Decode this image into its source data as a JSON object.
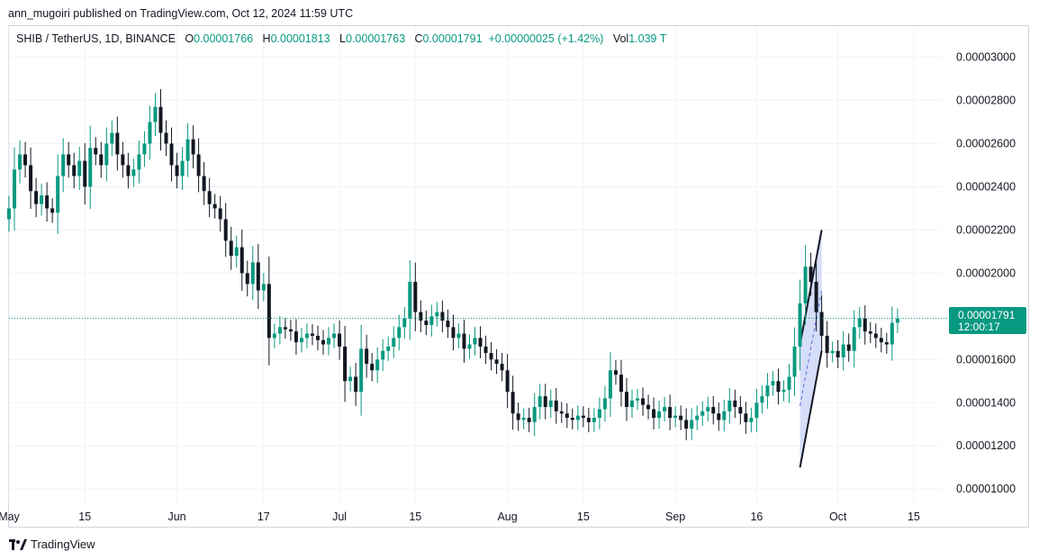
{
  "header": {
    "published_text": "ann_mugoiri published on TradingView.com, Oct 12, 2024 11:59 UTC"
  },
  "legend": {
    "symbol": "SHIB / TetherUS, 1D, BINANCE",
    "open_label": "O",
    "open": "0.00001766",
    "high_label": "H",
    "high": "0.00001813",
    "low_label": "L",
    "low": "0.00001763",
    "close_label": "C",
    "close": "0.00001791",
    "change": "+0.00000025 (+1.42%)",
    "vol_label": "Vol",
    "vol": "1.039 T"
  },
  "price_tag": {
    "price": "0.00001791",
    "countdown": "12:00:17"
  },
  "footer": {
    "brand": "TradingView"
  },
  "colors": {
    "up": "#089981",
    "down": "#131722",
    "price_line": "#089981",
    "channel_fill": "#c5cff5",
    "grid": "#f0f3fa",
    "text": "#131722"
  },
  "chart_data": {
    "type": "candlestick",
    "title": "SHIB / TetherUS, 1D, BINANCE",
    "y_ticks": [
      "0.00001000",
      "0.00001200",
      "0.00001400",
      "0.00001600",
      "0.00001800",
      "0.00002000",
      "0.00002200",
      "0.00002400",
      "0.00002600",
      "0.00002800",
      "0.00003000"
    ],
    "y_range": [
      9.3e-06,
      3.14e-05
    ],
    "x_ticks": [
      {
        "label": "May",
        "date": "2024-05-01"
      },
      {
        "label": "15",
        "date": "2024-05-15"
      },
      {
        "label": "Jun",
        "date": "2024-06-01"
      },
      {
        "label": "17",
        "date": "2024-06-17"
      },
      {
        "label": "Jul",
        "date": "2024-07-01"
      },
      {
        "label": "15",
        "date": "2024-07-15"
      },
      {
        "label": "Aug",
        "date": "2024-08-01"
      },
      {
        "label": "15",
        "date": "2024-08-15"
      },
      {
        "label": "Sep",
        "date": "2024-09-01"
      },
      {
        "label": "16",
        "date": "2024-09-16"
      },
      {
        "label": "Oct",
        "date": "2024-10-01"
      },
      {
        "label": "15",
        "date": "2024-10-15"
      }
    ],
    "x_range": [
      "2024-05-01",
      "2024-10-20"
    ],
    "last_price": 1.791e-05,
    "price_line": "dotted",
    "grid": true,
    "candle_dates": [
      "2024-05-01",
      "2024-05-02",
      "2024-05-03",
      "2024-05-04",
      "2024-05-05",
      "2024-05-06",
      "2024-05-07",
      "2024-05-08",
      "2024-05-09",
      "2024-05-10",
      "2024-05-11",
      "2024-05-12",
      "2024-05-13",
      "2024-05-14",
      "2024-05-15",
      "2024-05-16",
      "2024-05-17",
      "2024-05-18",
      "2024-05-19",
      "2024-05-20",
      "2024-05-21",
      "2024-05-22",
      "2024-05-23",
      "2024-05-24",
      "2024-05-25",
      "2024-05-26",
      "2024-05-27",
      "2024-05-28",
      "2024-05-29",
      "2024-05-30",
      "2024-05-31",
      "2024-06-01",
      "2024-06-02",
      "2024-06-03",
      "2024-06-04",
      "2024-06-05",
      "2024-06-06",
      "2024-06-07",
      "2024-06-08",
      "2024-06-09",
      "2024-06-10",
      "2024-06-11",
      "2024-06-12",
      "2024-06-13",
      "2024-06-14",
      "2024-06-15",
      "2024-06-16",
      "2024-06-17",
      "2024-06-18",
      "2024-06-19",
      "2024-06-20",
      "2024-06-21",
      "2024-06-22",
      "2024-06-23",
      "2024-06-24",
      "2024-06-25",
      "2024-06-26",
      "2024-06-27",
      "2024-06-28",
      "2024-06-29",
      "2024-06-30",
      "2024-07-01",
      "2024-07-02",
      "2024-07-03",
      "2024-07-04",
      "2024-07-05",
      "2024-07-06",
      "2024-07-07",
      "2024-07-08",
      "2024-07-09",
      "2024-07-10",
      "2024-07-11",
      "2024-07-12",
      "2024-07-13",
      "2024-07-14",
      "2024-07-15",
      "2024-07-16",
      "2024-07-17",
      "2024-07-18",
      "2024-07-19",
      "2024-07-20",
      "2024-07-21",
      "2024-07-22",
      "2024-07-23",
      "2024-07-24",
      "2024-07-25",
      "2024-07-26",
      "2024-07-27",
      "2024-07-28",
      "2024-07-29",
      "2024-07-30",
      "2024-07-31",
      "2024-08-01",
      "2024-08-02",
      "2024-08-03",
      "2024-08-04",
      "2024-08-05",
      "2024-08-06",
      "2024-08-07",
      "2024-08-08",
      "2024-08-09",
      "2024-08-10",
      "2024-08-11",
      "2024-08-12",
      "2024-08-13",
      "2024-08-14",
      "2024-08-15",
      "2024-08-16",
      "2024-08-17",
      "2024-08-18",
      "2024-08-19",
      "2024-08-20",
      "2024-08-21",
      "2024-08-22",
      "2024-08-23",
      "2024-08-24",
      "2024-08-25",
      "2024-08-26",
      "2024-08-27",
      "2024-08-28",
      "2024-08-29",
      "2024-08-30",
      "2024-08-31",
      "2024-09-01",
      "2024-09-02",
      "2024-09-03",
      "2024-09-04",
      "2024-09-05",
      "2024-09-06",
      "2024-09-07",
      "2024-09-08",
      "2024-09-09",
      "2024-09-10",
      "2024-09-11",
      "2024-09-12",
      "2024-09-13",
      "2024-09-14",
      "2024-09-15",
      "2024-09-16",
      "2024-09-17",
      "2024-09-18",
      "2024-09-19",
      "2024-09-20",
      "2024-09-21",
      "2024-09-22",
      "2024-09-23",
      "2024-09-24",
      "2024-09-25",
      "2024-09-26",
      "2024-09-27",
      "2024-09-28",
      "2024-09-29",
      "2024-09-30",
      "2024-10-01",
      "2024-10-02",
      "2024-10-03",
      "2024-10-04",
      "2024-10-05",
      "2024-10-06",
      "2024-10-07",
      "2024-10-08",
      "2024-10-09",
      "2024-10-10",
      "2024-10-11",
      "2024-10-12"
    ],
    "close_values": [
      2.3,
      2.48,
      2.55,
      2.5,
      2.38,
      2.32,
      2.36,
      2.3,
      2.28,
      2.45,
      2.55,
      2.5,
      2.45,
      2.52,
      2.4,
      2.58,
      2.55,
      2.5,
      2.6,
      2.65,
      2.55,
      2.5,
      2.45,
      2.48,
      2.55,
      2.6,
      2.7,
      2.77,
      2.65,
      2.6,
      2.5,
      2.45,
      2.52,
      2.62,
      2.55,
      2.45,
      2.38,
      2.32,
      2.3,
      2.25,
      2.15,
      2.08,
      2.12,
      2.0,
      1.95,
      2.05,
      1.92,
      1.95,
      1.7,
      1.72,
      1.75,
      1.74,
      1.73,
      1.68,
      1.7,
      1.72,
      1.71,
      1.69,
      1.67,
      1.7,
      1.72,
      1.66,
      1.5,
      1.52,
      1.45,
      1.65,
      1.58,
      1.55,
      1.6,
      1.64,
      1.66,
      1.7,
      1.75,
      1.79,
      1.96,
      1.82,
      1.78,
      1.76,
      1.8,
      1.82,
      1.78,
      1.75,
      1.7,
      1.72,
      1.65,
      1.67,
      1.7,
      1.66,
      1.63,
      1.6,
      1.58,
      1.55,
      1.45,
      1.35,
      1.32,
      1.33,
      1.31,
      1.38,
      1.43,
      1.38,
      1.41,
      1.36,
      1.35,
      1.33,
      1.32,
      1.34,
      1.33,
      1.31,
      1.33,
      1.37,
      1.42,
      1.55,
      1.53,
      1.45,
      1.38,
      1.41,
      1.42,
      1.39,
      1.37,
      1.33,
      1.36,
      1.38,
      1.33,
      1.34,
      1.32,
      1.28,
      1.32,
      1.34,
      1.36,
      1.38,
      1.35,
      1.32,
      1.36,
      1.41,
      1.38,
      1.35,
      1.31,
      1.33,
      1.4,
      1.43,
      1.48,
      1.5,
      1.45,
      1.46,
      1.52,
      1.66,
      1.86,
      2.03,
      1.96,
      1.82,
      1.71,
      1.63,
      1.64,
      1.61,
      1.67,
      1.64,
      1.75,
      1.79,
      1.73,
      1.72,
      1.7,
      1.68,
      1.67,
      1.77,
      1.79
    ],
    "series_unit": "x 0.00001 USDT",
    "drawing": {
      "type": "parallel-channel",
      "line_start": "2024-09-24",
      "line_end": "2024-09-28",
      "upper_start": 1.67e-05,
      "upper_end": 2.2e-05,
      "lower_start": 1.1e-05,
      "lower_end": 1.64e-05
    }
  }
}
